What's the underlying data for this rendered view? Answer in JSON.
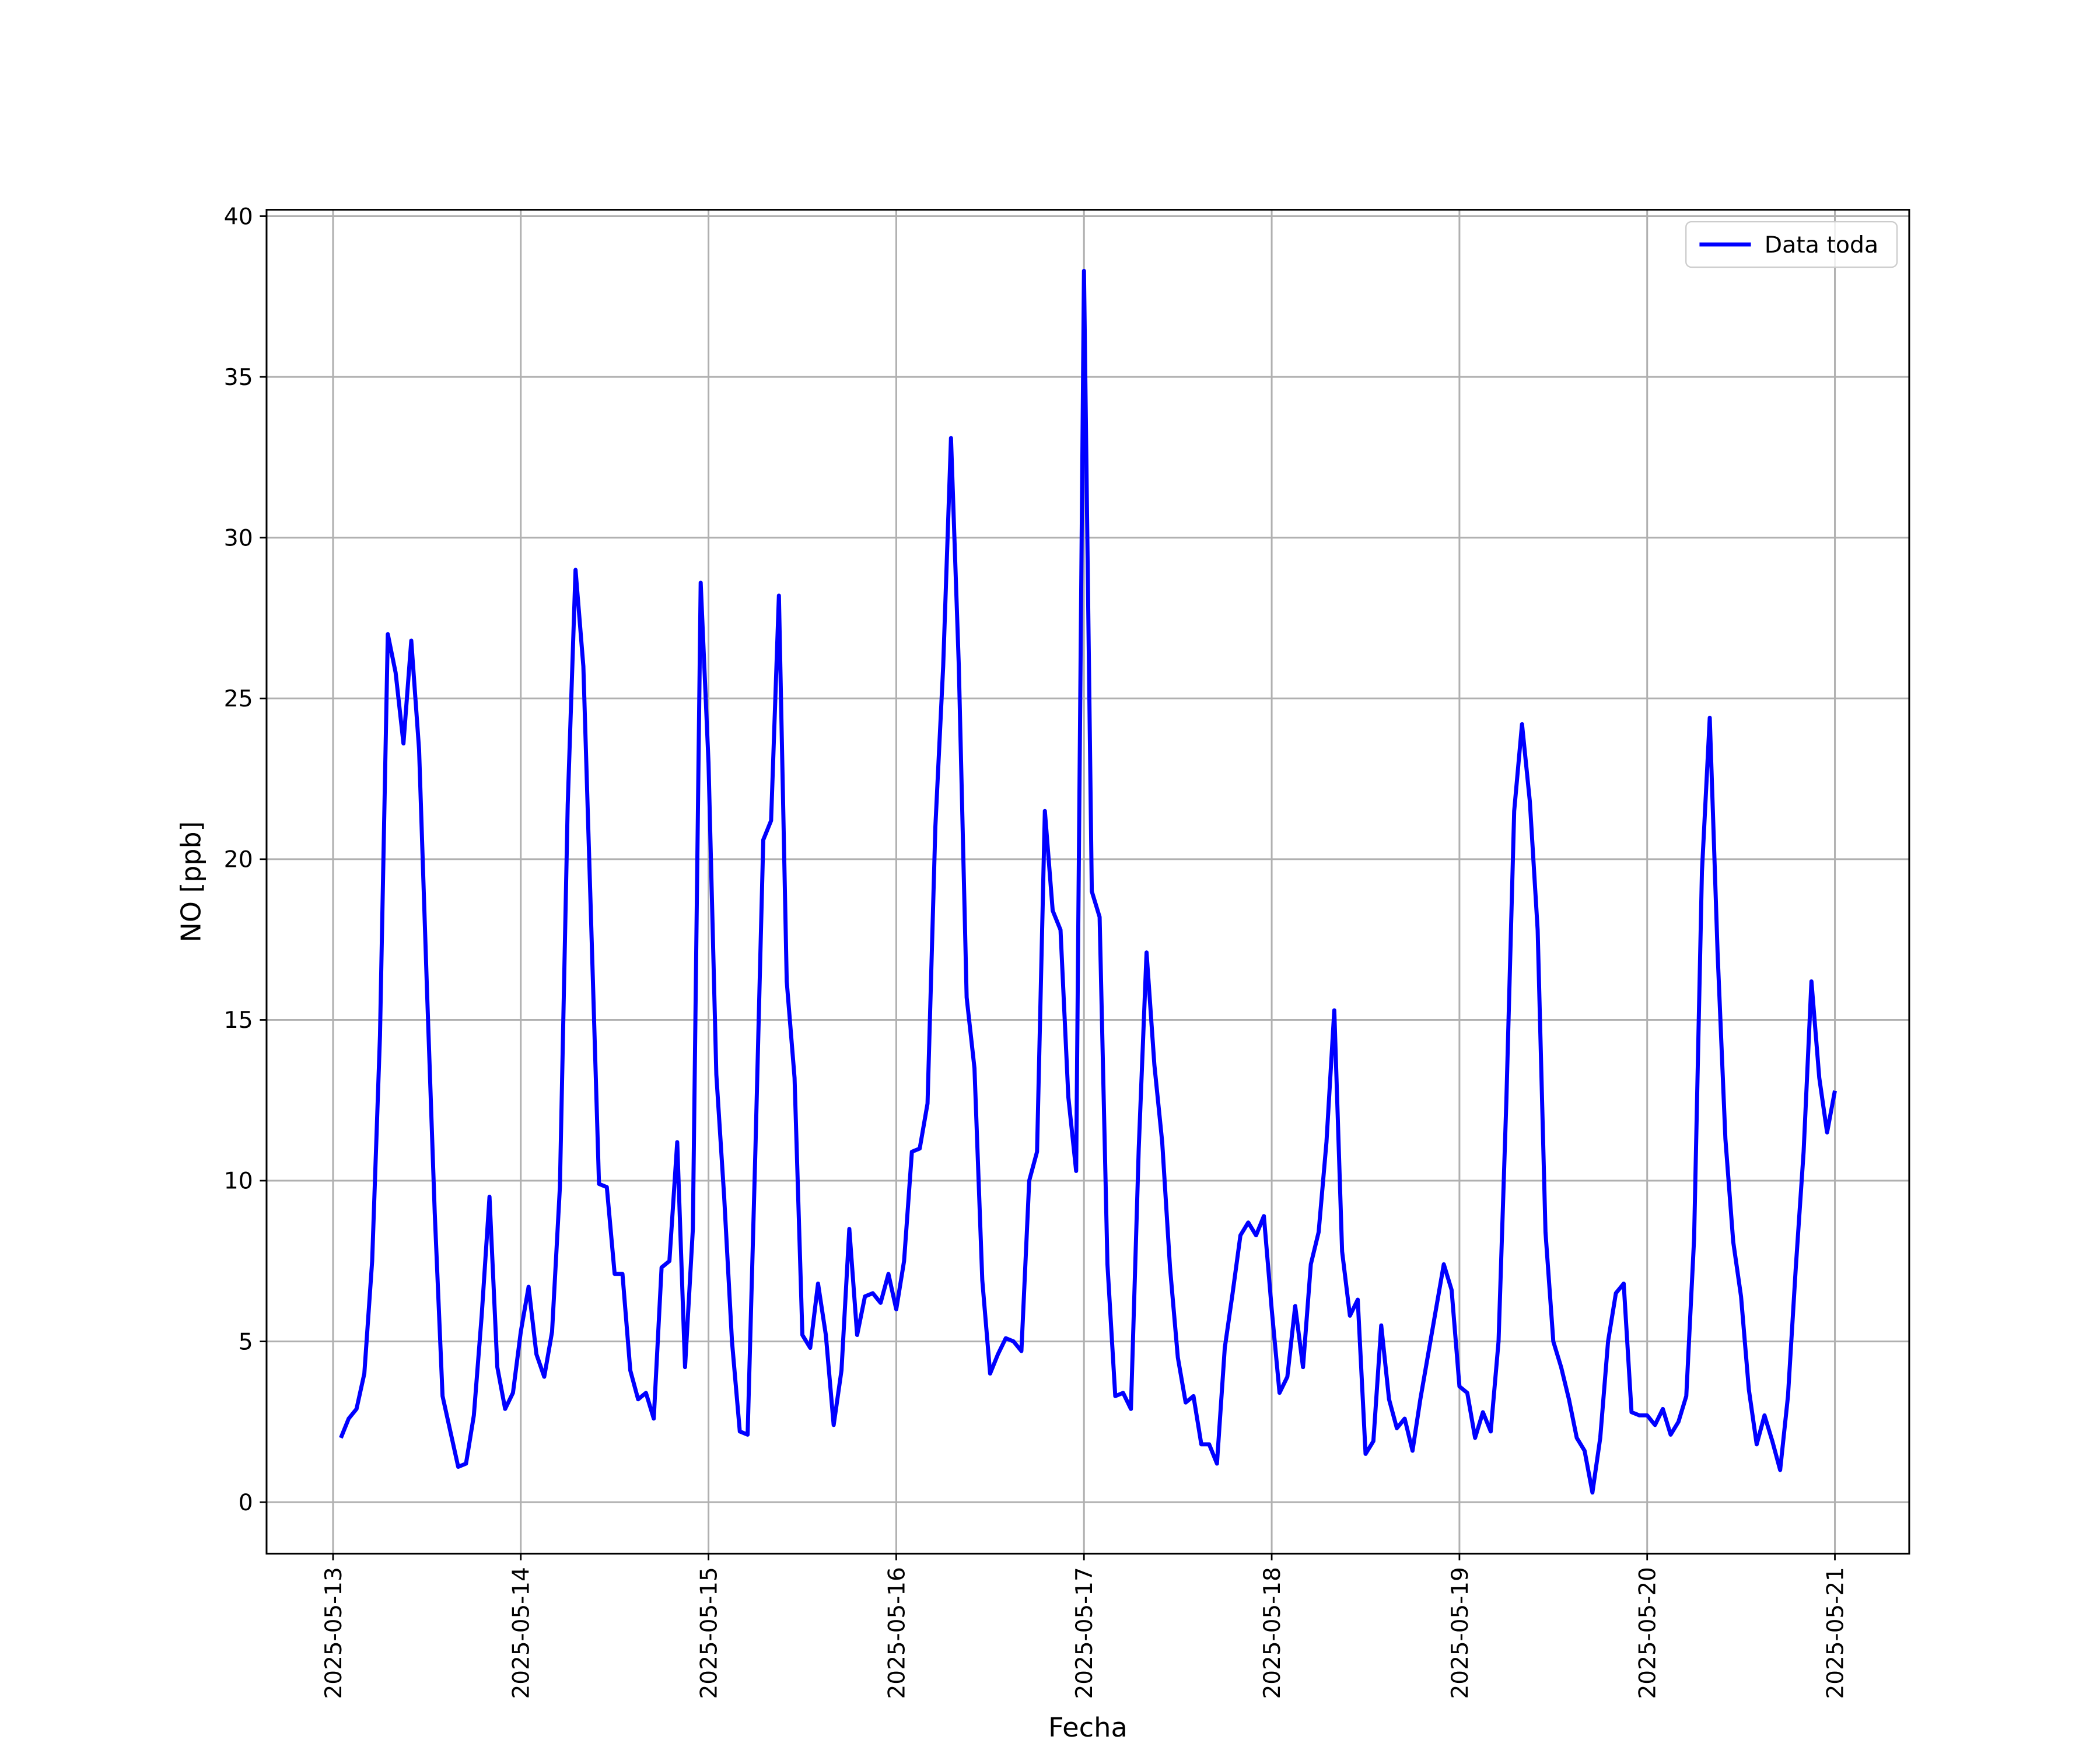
{
  "chart_data": {
    "type": "line",
    "x_label": "Fecha",
    "y_label": "NO [ppb]",
    "x": [
      "2025-05-13 01:00",
      "2025-05-13 02:00",
      "2025-05-13 03:00",
      "2025-05-13 04:00",
      "2025-05-13 05:00",
      "2025-05-13 06:00",
      "2025-05-13 07:00",
      "2025-05-13 08:00",
      "2025-05-13 09:00",
      "2025-05-13 10:00",
      "2025-05-13 11:00",
      "2025-05-13 12:00",
      "2025-05-13 13:00",
      "2025-05-13 14:00",
      "2025-05-13 15:00",
      "2025-05-13 16:00",
      "2025-05-13 17:00",
      "2025-05-13 18:00",
      "2025-05-13 19:00",
      "2025-05-13 20:00",
      "2025-05-13 21:00",
      "2025-05-13 22:00",
      "2025-05-13 23:00",
      "2025-05-14 00:00",
      "2025-05-14 01:00",
      "2025-05-14 02:00",
      "2025-05-14 03:00",
      "2025-05-14 04:00",
      "2025-05-14 05:00",
      "2025-05-14 06:00",
      "2025-05-14 07:00",
      "2025-05-14 08:00",
      "2025-05-14 09:00",
      "2025-05-14 10:00",
      "2025-05-14 11:00",
      "2025-05-14 12:00",
      "2025-05-14 13:00",
      "2025-05-14 14:00",
      "2025-05-14 15:00",
      "2025-05-14 16:00",
      "2025-05-14 17:00",
      "2025-05-14 18:00",
      "2025-05-14 19:00",
      "2025-05-14 20:00",
      "2025-05-14 21:00",
      "2025-05-14 22:00",
      "2025-05-14 23:00",
      "2025-05-15 00:00",
      "2025-05-15 01:00",
      "2025-05-15 02:00",
      "2025-05-15 03:00",
      "2025-05-15 04:00",
      "2025-05-15 05:00",
      "2025-05-15 06:00",
      "2025-05-15 07:00",
      "2025-05-15 08:00",
      "2025-05-15 09:00",
      "2025-05-15 10:00",
      "2025-05-15 11:00",
      "2025-05-15 12:00",
      "2025-05-15 13:00",
      "2025-05-15 14:00",
      "2025-05-15 15:00",
      "2025-05-15 16:00",
      "2025-05-15 17:00",
      "2025-05-15 18:00",
      "2025-05-15 19:00",
      "2025-05-15 20:00",
      "2025-05-15 21:00",
      "2025-05-15 22:00",
      "2025-05-15 23:00",
      "2025-05-16 00:00",
      "2025-05-16 01:00",
      "2025-05-16 02:00",
      "2025-05-16 03:00",
      "2025-05-16 04:00",
      "2025-05-16 05:00",
      "2025-05-16 06:00",
      "2025-05-16 07:00",
      "2025-05-16 08:00",
      "2025-05-16 09:00",
      "2025-05-16 10:00",
      "2025-05-16 11:00",
      "2025-05-16 12:00",
      "2025-05-16 13:00",
      "2025-05-16 14:00",
      "2025-05-16 15:00",
      "2025-05-16 16:00",
      "2025-05-16 17:00",
      "2025-05-16 18:00",
      "2025-05-16 19:00",
      "2025-05-16 20:00",
      "2025-05-16 21:00",
      "2025-05-16 22:00",
      "2025-05-16 23:00",
      "2025-05-17 00:00",
      "2025-05-17 01:00",
      "2025-05-17 02:00",
      "2025-05-17 03:00",
      "2025-05-17 04:00",
      "2025-05-17 05:00",
      "2025-05-17 06:00",
      "2025-05-17 07:00",
      "2025-05-17 08:00",
      "2025-05-17 09:00",
      "2025-05-17 10:00",
      "2025-05-17 11:00",
      "2025-05-17 12:00",
      "2025-05-17 13:00",
      "2025-05-17 14:00",
      "2025-05-17 15:00",
      "2025-05-17 16:00",
      "2025-05-17 17:00",
      "2025-05-17 18:00",
      "2025-05-17 19:00",
      "2025-05-17 20:00",
      "2025-05-17 21:00",
      "2025-05-17 22:00",
      "2025-05-17 23:00",
      "2025-05-18 00:00",
      "2025-05-18 01:00",
      "2025-05-18 02:00",
      "2025-05-18 03:00",
      "2025-05-18 04:00",
      "2025-05-18 05:00",
      "2025-05-18 06:00",
      "2025-05-18 07:00",
      "2025-05-18 08:00",
      "2025-05-18 09:00",
      "2025-05-18 10:00",
      "2025-05-18 11:00",
      "2025-05-18 12:00",
      "2025-05-18 13:00",
      "2025-05-18 14:00",
      "2025-05-18 15:00",
      "2025-05-18 16:00",
      "2025-05-18 17:00",
      "2025-05-18 18:00",
      "2025-05-18 19:00",
      "2025-05-18 20:00",
      "2025-05-18 21:00",
      "2025-05-18 22:00",
      "2025-05-18 23:00",
      "2025-05-19 00:00",
      "2025-05-19 01:00",
      "2025-05-19 02:00",
      "2025-05-19 03:00",
      "2025-05-19 04:00",
      "2025-05-19 05:00",
      "2025-05-19 06:00",
      "2025-05-19 07:00",
      "2025-05-19 08:00",
      "2025-05-19 09:00",
      "2025-05-19 10:00",
      "2025-05-19 11:00",
      "2025-05-19 12:00",
      "2025-05-19 13:00",
      "2025-05-19 14:00",
      "2025-05-19 15:00",
      "2025-05-19 16:00",
      "2025-05-19 17:00",
      "2025-05-19 18:00",
      "2025-05-19 19:00",
      "2025-05-19 20:00",
      "2025-05-19 21:00",
      "2025-05-19 22:00",
      "2025-05-19 23:00",
      "2025-05-20 00:00",
      "2025-05-20 01:00",
      "2025-05-20 02:00",
      "2025-05-20 03:00",
      "2025-05-20 04:00",
      "2025-05-20 05:00",
      "2025-05-20 06:00",
      "2025-05-20 07:00",
      "2025-05-20 08:00",
      "2025-05-20 09:00",
      "2025-05-20 10:00",
      "2025-05-20 11:00",
      "2025-05-20 12:00",
      "2025-05-20 13:00",
      "2025-05-20 14:00",
      "2025-05-20 15:00",
      "2025-05-20 16:00",
      "2025-05-20 17:00",
      "2025-05-20 18:00",
      "2025-05-20 19:00",
      "2025-05-20 20:00",
      "2025-05-20 21:00",
      "2025-05-20 22:00",
      "2025-05-20 23:00",
      "2025-05-21 00:00"
    ],
    "series": [
      {
        "name": "Data toda",
        "color": "#0000ff",
        "values": [
          2.0,
          2.6,
          2.9,
          4.0,
          7.5,
          14.5,
          27.0,
          25.8,
          23.6,
          26.8,
          23.4,
          16.0,
          9.0,
          3.3,
          2.2,
          1.1,
          1.2,
          2.7,
          5.8,
          9.5,
          4.2,
          2.9,
          3.4,
          5.3,
          6.7,
          4.6,
          3.9,
          5.3,
          9.8,
          21.7,
          29.0,
          26.0,
          18.0,
          9.9,
          9.8,
          7.1,
          7.1,
          4.1,
          3.2,
          3.4,
          2.6,
          7.3,
          7.5,
          11.2,
          4.2,
          8.5,
          28.6,
          23.0,
          13.3,
          9.5,
          5.0,
          2.2,
          2.1,
          11.0,
          20.6,
          21.2,
          28.2,
          16.2,
          13.2,
          5.2,
          4.8,
          6.8,
          5.2,
          2.4,
          4.1,
          8.5,
          5.2,
          6.4,
          6.5,
          6.2,
          7.1,
          6.0,
          7.5,
          10.9,
          11.0,
          12.4,
          21.0,
          26.0,
          33.1,
          26.0,
          15.7,
          13.5,
          6.9,
          4.0,
          4.6,
          5.1,
          5.0,
          4.7,
          10.0,
          10.9,
          21.5,
          18.4,
          17.8,
          12.6,
          10.3,
          38.3,
          19.0,
          18.2,
          7.4,
          3.3,
          3.4,
          2.9,
          11.0,
          17.1,
          13.6,
          11.2,
          7.3,
          4.5,
          3.1,
          3.3,
          1.8,
          1.8,
          1.2,
          4.8,
          6.5,
          8.3,
          8.7,
          8.3,
          8.9,
          6.0,
          3.4,
          3.9,
          6.1,
          4.2,
          7.4,
          8.4,
          11.2,
          15.3,
          7.8,
          5.8,
          6.3,
          1.5,
          1.9,
          5.5,
          3.2,
          2.3,
          2.6,
          1.6,
          3.2,
          4.6,
          6.0,
          7.4,
          6.6,
          3.6,
          3.4,
          2.0,
          2.8,
          2.2,
          5.0,
          12.5,
          21.5,
          24.2,
          21.8,
          17.8,
          8.4,
          5.0,
          4.2,
          3.2,
          2.0,
          1.6,
          0.3,
          2.0,
          5.0,
          6.5,
          6.8,
          2.8,
          2.7,
          2.7,
          2.4,
          2.9,
          2.1,
          2.5,
          3.3,
          8.2,
          19.6,
          24.4,
          17.1,
          11.3,
          8.1,
          6.4,
          3.5,
          1.8,
          2.7,
          1.9,
          1.0,
          3.3,
          7.3,
          10.9,
          16.2,
          13.2,
          11.5,
          12.8
        ]
      }
    ],
    "xlim": [
      "2025-05-12 15:30",
      "2025-05-21 09:30"
    ],
    "xticks": [
      "2025-05-13",
      "2025-05-14",
      "2025-05-15",
      "2025-05-16",
      "2025-05-17",
      "2025-05-18",
      "2025-05-19",
      "2025-05-20",
      "2025-05-21"
    ],
    "ylim": [
      -1.6,
      40.2
    ],
    "yticks": [
      0,
      5,
      10,
      15,
      20,
      25,
      30,
      35,
      40
    ],
    "grid": true,
    "legend": "upper right"
  }
}
